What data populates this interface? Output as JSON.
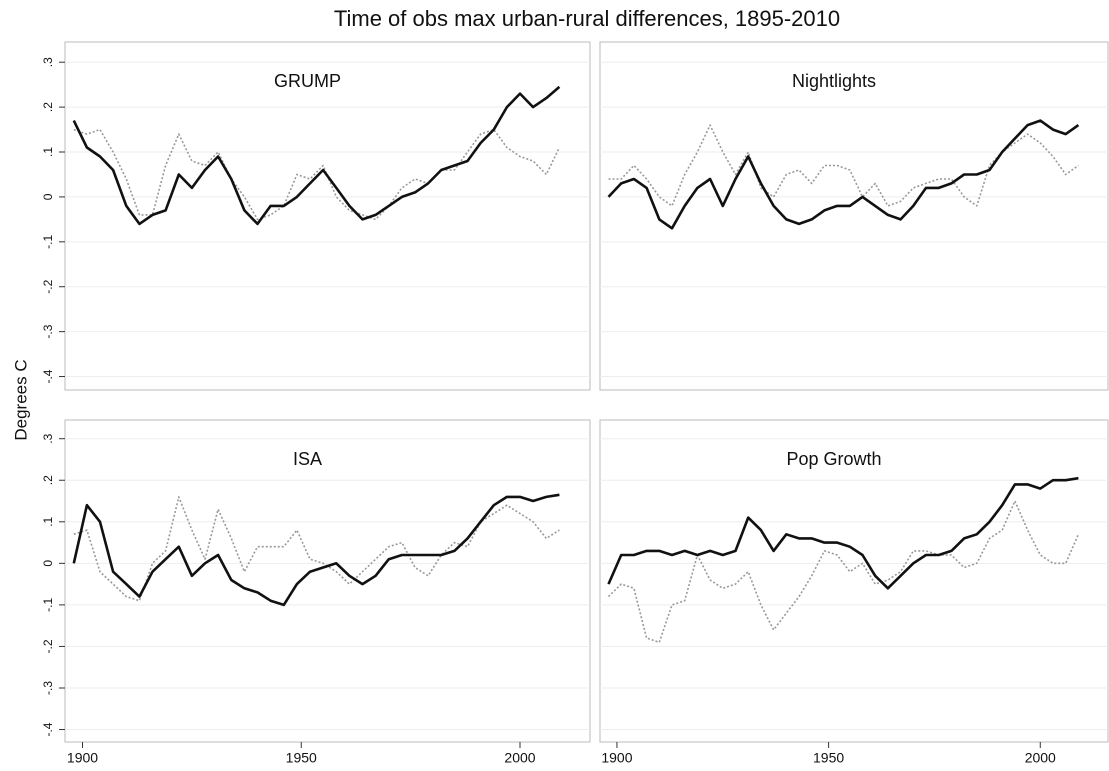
{
  "title": "Time of obs max urban-rural differences, 1895-2010",
  "ylabel": "Degrees C",
  "x": [
    1898,
    1901,
    1904,
    1907,
    1910,
    1913,
    1916,
    1919,
    1922,
    1925,
    1928,
    1931,
    1934,
    1937,
    1940,
    1943,
    1946,
    1949,
    1952,
    1955,
    1958,
    1961,
    1964,
    1967,
    1970,
    1973,
    1976,
    1979,
    1982,
    1985,
    1988,
    1991,
    1994,
    1997,
    2000,
    2003,
    2006,
    2009
  ],
  "xlim": [
    1896,
    2016
  ],
  "xticks": [
    1900,
    1950,
    2000
  ],
  "ylim": [
    -0.43,
    0.345
  ],
  "yticks": [
    {
      "value": 0.3,
      "label": ".3"
    },
    {
      "value": 0.2,
      "label": ".2"
    },
    {
      "value": 0.1,
      "label": ".1"
    },
    0,
    {
      "value": -0.1,
      "label": "-.1"
    },
    {
      "value": -0.2,
      "label": "-.2"
    },
    {
      "value": -0.3,
      "label": "-.3"
    },
    {
      "value": -0.4,
      "label": "-.4"
    }
  ],
  "grid": true,
  "chart_data": [
    {
      "type": "line",
      "title": "GRUMP",
      "series": [
        {
          "color": "#111111",
          "style": "solid",
          "values": [
            0.17,
            0.11,
            0.09,
            0.06,
            -0.02,
            -0.06,
            -0.04,
            -0.03,
            0.05,
            0.02,
            0.06,
            0.09,
            0.04,
            -0.03,
            -0.06,
            -0.02,
            -0.02,
            0.0,
            0.03,
            0.06,
            0.02,
            -0.02,
            -0.05,
            -0.04,
            -0.02,
            0.0,
            0.01,
            0.03,
            0.06,
            0.07,
            0.08,
            0.12,
            0.15,
            0.2,
            0.23,
            0.2,
            0.22,
            0.245
          ]
        },
        {
          "color": "#999999",
          "style": "dotted",
          "values": [
            0.15,
            0.14,
            0.15,
            0.1,
            0.04,
            -0.04,
            -0.04,
            0.07,
            0.14,
            0.08,
            0.07,
            0.1,
            0.04,
            0.0,
            -0.05,
            -0.04,
            -0.02,
            0.05,
            0.04,
            0.07,
            0.0,
            -0.03,
            -0.04,
            -0.05,
            -0.02,
            0.02,
            0.04,
            0.03,
            0.06,
            0.06,
            0.1,
            0.14,
            0.15,
            0.11,
            0.09,
            0.08,
            0.05,
            0.11
          ]
        }
      ]
    },
    {
      "type": "line",
      "title": "Nightlights",
      "series": [
        {
          "color": "#111111",
          "style": "solid",
          "values": [
            0.0,
            0.03,
            0.04,
            0.02,
            -0.05,
            -0.07,
            -0.02,
            0.02,
            0.04,
            -0.02,
            0.04,
            0.09,
            0.03,
            -0.02,
            -0.05,
            -0.06,
            -0.05,
            -0.03,
            -0.02,
            -0.02,
            0.0,
            -0.02,
            -0.04,
            -0.05,
            -0.02,
            0.02,
            0.02,
            0.03,
            0.05,
            0.05,
            0.06,
            0.1,
            0.13,
            0.16,
            0.17,
            0.15,
            0.14,
            0.16
          ]
        },
        {
          "color": "#999999",
          "style": "dotted",
          "values": [
            0.04,
            0.04,
            0.07,
            0.04,
            0.0,
            -0.02,
            0.05,
            0.1,
            0.16,
            0.1,
            0.05,
            0.1,
            0.02,
            0.0,
            0.05,
            0.06,
            0.03,
            0.07,
            0.07,
            0.06,
            0.0,
            0.03,
            -0.02,
            -0.01,
            0.02,
            0.03,
            0.04,
            0.04,
            0.0,
            -0.02,
            0.07,
            0.1,
            0.12,
            0.14,
            0.12,
            0.09,
            0.05,
            0.07
          ]
        }
      ]
    },
    {
      "type": "line",
      "title": "ISA",
      "series": [
        {
          "color": "#111111",
          "style": "solid",
          "values": [
            0.0,
            0.14,
            0.1,
            -0.02,
            -0.05,
            -0.08,
            -0.02,
            0.01,
            0.04,
            -0.03,
            0.0,
            0.02,
            -0.04,
            -0.06,
            -0.07,
            -0.09,
            -0.1,
            -0.05,
            -0.02,
            -0.01,
            0.0,
            -0.03,
            -0.05,
            -0.03,
            0.01,
            0.02,
            0.02,
            0.02,
            0.02,
            0.03,
            0.06,
            0.1,
            0.14,
            0.16,
            0.16,
            0.15,
            0.16,
            0.165
          ]
        },
        {
          "color": "#999999",
          "style": "dotted",
          "values": [
            0.07,
            0.08,
            -0.02,
            -0.05,
            -0.08,
            -0.09,
            0.0,
            0.03,
            0.16,
            0.08,
            0.01,
            0.13,
            0.06,
            -0.02,
            0.04,
            0.04,
            0.04,
            0.08,
            0.01,
            0.0,
            -0.02,
            -0.05,
            -0.02,
            0.01,
            0.04,
            0.05,
            -0.01,
            -0.03,
            0.02,
            0.05,
            0.04,
            0.1,
            0.12,
            0.14,
            0.12,
            0.1,
            0.06,
            0.08
          ]
        }
      ]
    },
    {
      "type": "line",
      "title": "Pop Growth",
      "series": [
        {
          "color": "#111111",
          "style": "solid",
          "values": [
            -0.05,
            0.02,
            0.02,
            0.03,
            0.03,
            0.02,
            0.03,
            0.02,
            0.03,
            0.02,
            0.03,
            0.11,
            0.08,
            0.03,
            0.07,
            0.06,
            0.06,
            0.05,
            0.05,
            0.04,
            0.02,
            -0.03,
            -0.06,
            -0.03,
            0.0,
            0.02,
            0.02,
            0.03,
            0.06,
            0.07,
            0.1,
            0.14,
            0.19,
            0.19,
            0.18,
            0.2,
            0.2,
            0.205
          ]
        },
        {
          "color": "#999999",
          "style": "dotted",
          "values": [
            -0.08,
            -0.05,
            -0.06,
            -0.18,
            -0.19,
            -0.1,
            -0.09,
            0.02,
            -0.04,
            -0.06,
            -0.05,
            -0.02,
            -0.1,
            -0.16,
            -0.12,
            -0.08,
            -0.03,
            0.03,
            0.02,
            -0.02,
            0.0,
            -0.05,
            -0.04,
            -0.02,
            0.03,
            0.03,
            0.02,
            0.02,
            -0.01,
            0.0,
            0.06,
            0.08,
            0.15,
            0.08,
            0.02,
            0.0,
            0.0,
            0.07
          ]
        }
      ]
    }
  ]
}
